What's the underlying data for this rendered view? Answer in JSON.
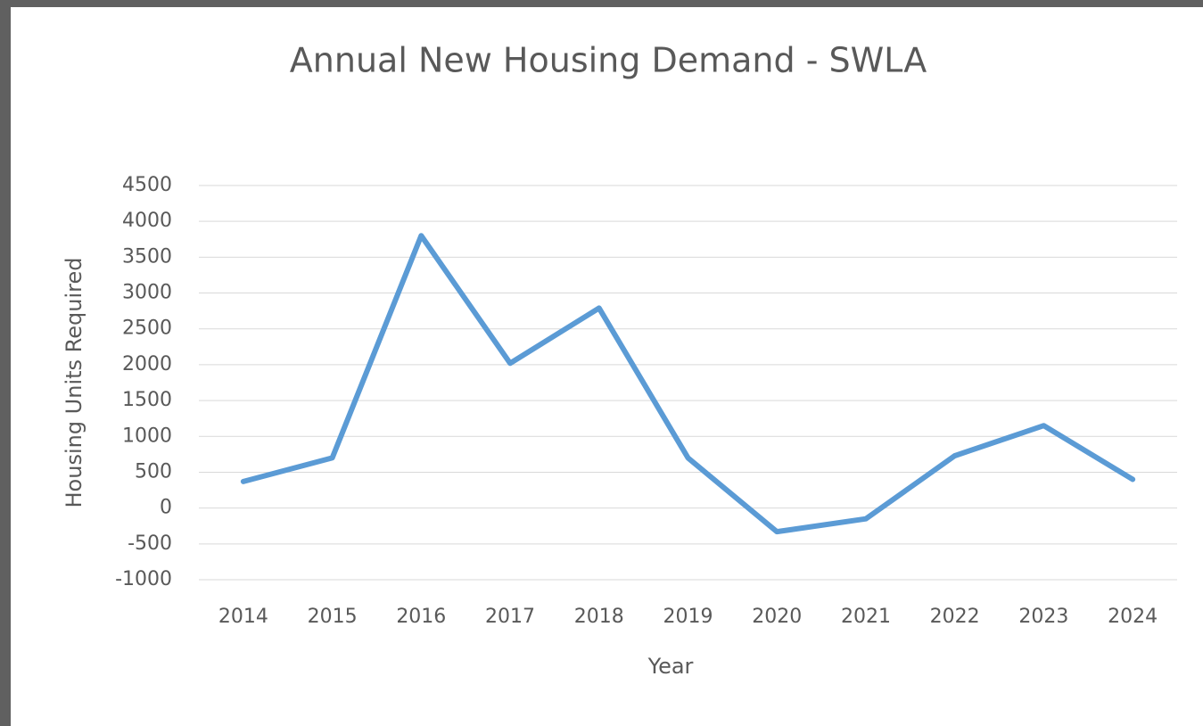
{
  "chart_data": {
    "type": "line",
    "title": "Annual New Housing Demand - SWLA",
    "x_label": "Year",
    "y_label": "Housing  Units Required",
    "categories": [
      "2014",
      "2015",
      "2016",
      "2017",
      "2018",
      "2019",
      "2020",
      "2021",
      "2022",
      "2023",
      "2024"
    ],
    "series": [
      {
        "name": "Housing Units Required",
        "color": "#5b9bd5",
        "values": [
          370,
          700,
          3800,
          2020,
          2790,
          700,
          -330,
          -150,
          730,
          1150,
          400
        ]
      }
    ],
    "ylim": [
      -1000,
      4500
    ],
    "yticks": [
      -1000,
      -500,
      0,
      500,
      1000,
      1500,
      2000,
      2500,
      3000,
      3500,
      4000,
      4500
    ],
    "grid": true
  }
}
